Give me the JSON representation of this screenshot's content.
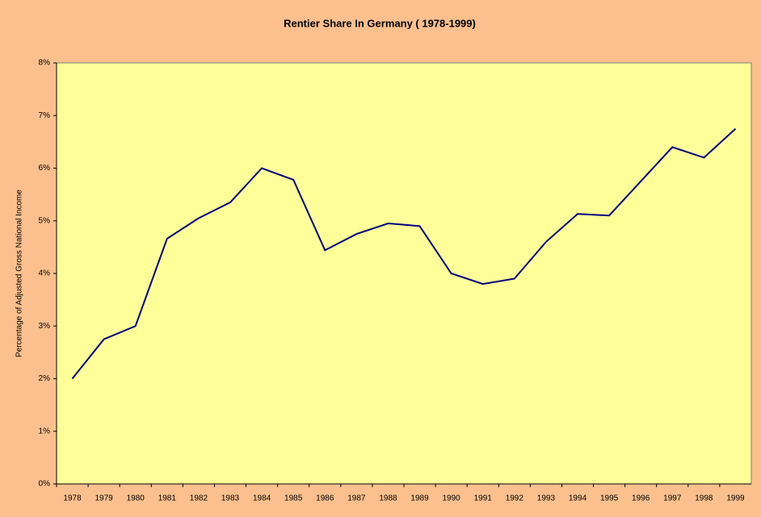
{
  "chart_data": {
    "type": "line",
    "title": "Rentier Share  In Germany ( 1978-1999)",
    "y_label": "Percentage of Adjusted Gross National Income",
    "categories": [
      "1978",
      "1979",
      "1980",
      "1981",
      "1982",
      "1983",
      "1984",
      "1985",
      "1986",
      "1987",
      "1988",
      "1989",
      "1990",
      "1991",
      "1992",
      "1993",
      "1994",
      "1995",
      "1996",
      "1997",
      "1998",
      "1999"
    ],
    "series": [
      {
        "name": "Rentier Share",
        "color": "#000080",
        "values": [
          2.0,
          2.75,
          3.0,
          4.66,
          5.05,
          5.35,
          6.0,
          5.78,
          4.44,
          4.75,
          4.95,
          4.9,
          4.0,
          3.8,
          3.9,
          4.6,
          5.13,
          5.1,
          5.75,
          6.4,
          6.2,
          6.75
        ]
      }
    ],
    "ylim": [
      0,
      8
    ],
    "yticks": [
      {
        "value": 0,
        "label": "0%"
      },
      {
        "value": 1,
        "label": "1%"
      },
      {
        "value": 2,
        "label": "2%"
      },
      {
        "value": 3,
        "label": "3%"
      },
      {
        "value": 4,
        "label": "4%"
      },
      {
        "value": 5,
        "label": "5%"
      },
      {
        "value": 6,
        "label": "6%"
      },
      {
        "value": 7,
        "label": "7%"
      },
      {
        "value": 8,
        "label": "8%"
      }
    ],
    "grid": false
  }
}
